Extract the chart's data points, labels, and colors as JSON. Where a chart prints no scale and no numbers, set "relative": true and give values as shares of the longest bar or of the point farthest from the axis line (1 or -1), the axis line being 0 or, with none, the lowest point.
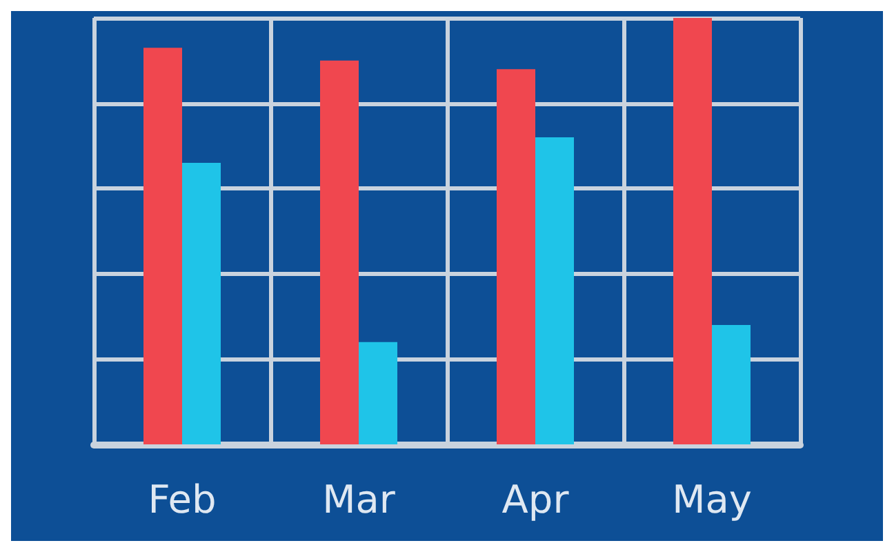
{
  "chart_data": {
    "type": "bar",
    "relative": true,
    "grid": true,
    "categories": [
      "Feb",
      "Mar",
      "Apr",
      "May"
    ],
    "series": [
      {
        "color": "#f0474f",
        "values": [
          0.93,
          0.9,
          0.88,
          1.0
        ]
      },
      {
        "color": "#1fc4e8",
        "values": [
          0.66,
          0.24,
          0.72,
          0.28
        ]
      }
    ]
  }
}
